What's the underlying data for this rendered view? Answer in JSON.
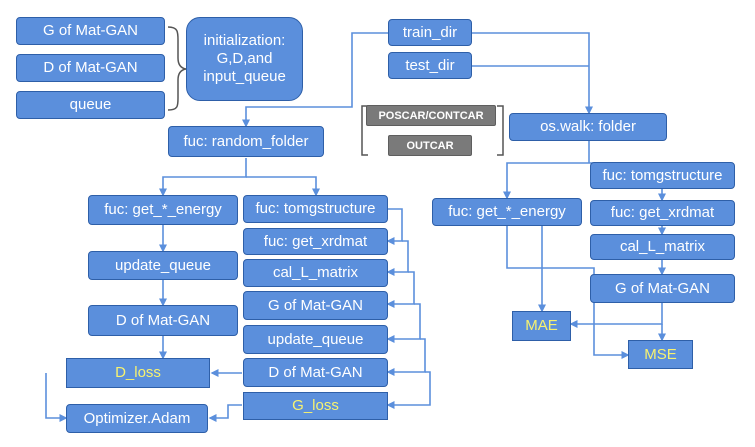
{
  "legend": {
    "items": [
      "G of Mat-GAN",
      "D of Mat-GAN",
      "queue"
    ],
    "init_text": "initialization: G,D,and input_queue"
  },
  "top": {
    "train_dir": "train_dir",
    "test_dir": "test_dir",
    "file_types": [
      "POSCAR/CONTCAR",
      "OUTCAR"
    ],
    "random_folder": "fuc: random_folder",
    "os_walk": "os.walk: folder"
  },
  "train": {
    "get_energy": "fuc: get_*_energy",
    "update_queue": "update_queue",
    "d_mat_gan": "D of Mat-GAN",
    "d_loss": "D_loss",
    "optimizer": "Optimizer.Adam",
    "tomgstructure": "fuc: tomgstructure",
    "get_xrdmat": "fuc: get_xrdmat",
    "cal_l_matrix": "cal_L_matrix",
    "g_mat_gan": "G of Mat-GAN",
    "update_queue_2": "update_queue",
    "d_mat_gan_2": "D of Mat-GAN",
    "g_loss": "G_loss"
  },
  "test": {
    "get_energy": "fuc: get_*_energy",
    "tomgstructure": "fuc: tomgstructure",
    "get_xrdmat": "fuc: get_xrdmat",
    "cal_l_matrix": "cal_L_matrix",
    "g_mat_gan": "G of Mat-GAN",
    "mae": "MAE",
    "mse": "MSE"
  },
  "colors": {
    "box_fill": "#5b8fdc",
    "box_border": "#2e5fa8",
    "text": "#ffffff",
    "highlight_text": "#f7f270",
    "tag_fill": "#7a7a7a",
    "line": "#5b8fdc"
  }
}
